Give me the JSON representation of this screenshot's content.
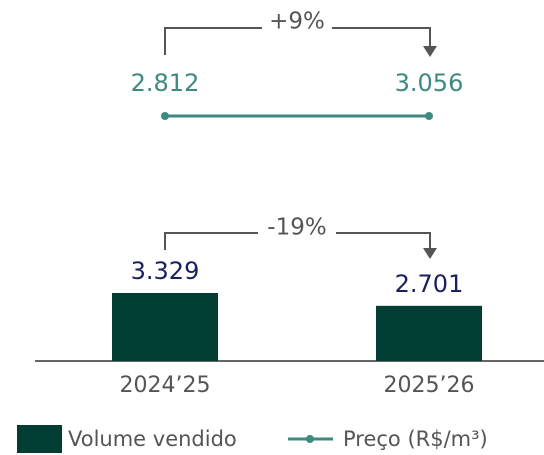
{
  "chart_data": [
    {
      "type": "line",
      "categories": [
        "2024’25",
        "2025’26"
      ],
      "annotation": "+9%",
      "series": [
        {
          "name": "Preço (R$/m³)",
          "color": "#3d8a80",
          "values": [
            2812,
            3056
          ],
          "value_labels": [
            "2.812",
            "3.056"
          ]
        }
      ]
    },
    {
      "type": "bar",
      "categories": [
        "2024’25",
        "2025’26"
      ],
      "annotation": "-19%",
      "series": [
        {
          "name": "Volume vendido",
          "color": "#003d33",
          "values": [
            3329,
            2701
          ],
          "value_labels": [
            "3.329",
            "2.701"
          ]
        }
      ]
    }
  ]
}
